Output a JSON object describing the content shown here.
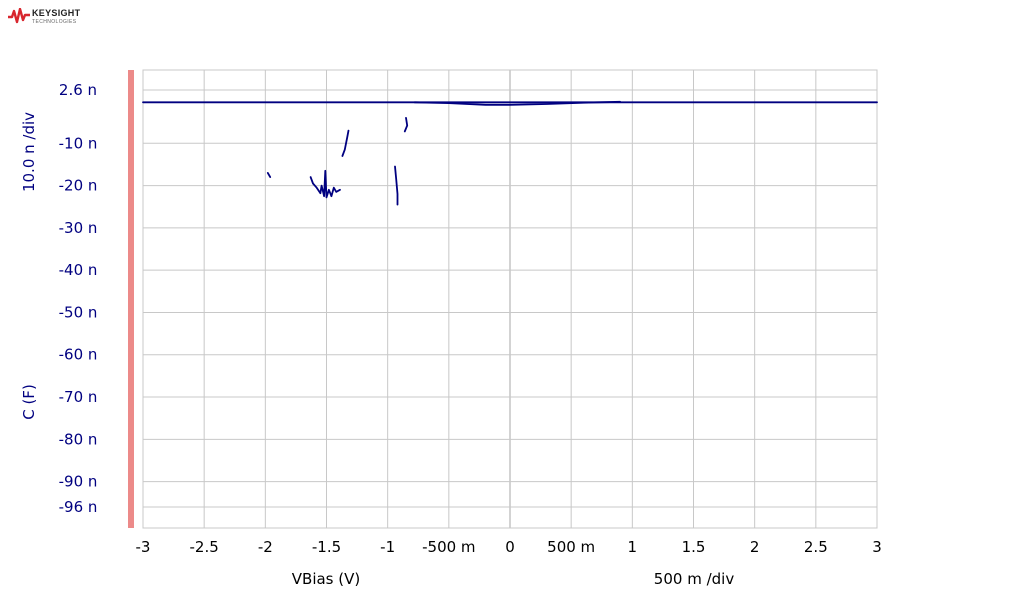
{
  "brand": {
    "name": "KEYSIGHT",
    "subtitle": "TECHNOLOGIES",
    "logo_color": "#d8262e"
  },
  "chart_data": {
    "type": "line",
    "xlabel": "VBias (V)",
    "x_scale_label": "500 m /div",
    "ylabel": "C (F)",
    "y_scale_label": "10.0 n /div",
    "xlim": [
      -3,
      3
    ],
    "ylim": [
      -96,
      2.6
    ],
    "grid": true,
    "x_ticks": [
      {
        "value": -3,
        "label": "-3"
      },
      {
        "value": -2.5,
        "label": "-2.5"
      },
      {
        "value": -2,
        "label": "-2"
      },
      {
        "value": -1.5,
        "label": "-1.5"
      },
      {
        "value": -1,
        "label": "-1"
      },
      {
        "value": -0.5,
        "label": "-500 m"
      },
      {
        "value": 0,
        "label": "0"
      },
      {
        "value": 0.5,
        "label": "500 m"
      },
      {
        "value": 1,
        "label": "1"
      },
      {
        "value": 1.5,
        "label": "1.5"
      },
      {
        "value": 2,
        "label": "2"
      },
      {
        "value": 2.5,
        "label": "2.5"
      },
      {
        "value": 3,
        "label": "3"
      }
    ],
    "y_ticks": [
      {
        "value": 2.6,
        "label": "2.6 n"
      },
      {
        "value": -10,
        "label": "-10 n"
      },
      {
        "value": -20,
        "label": "-20 n"
      },
      {
        "value": -30,
        "label": "-30 n"
      },
      {
        "value": -40,
        "label": "-40 n"
      },
      {
        "value": -50,
        "label": "-50 n"
      },
      {
        "value": -60,
        "label": "-60 n"
      },
      {
        "value": -70,
        "label": "-70 n"
      },
      {
        "value": -80,
        "label": "-80 n"
      },
      {
        "value": -90,
        "label": "-90 n"
      },
      {
        "value": -96,
        "label": "-96 n"
      }
    ],
    "series_color": "#000080",
    "series": [
      {
        "segments": [
          [
            [
              -3.0,
              -0.3
            ],
            [
              3.0,
              -0.3
            ]
          ],
          [
            [
              -0.78,
              -0.3
            ],
            [
              -0.5,
              -0.5
            ],
            [
              -0.2,
              -0.9
            ],
            [
              0.0,
              -0.9
            ],
            [
              0.3,
              -0.7
            ],
            [
              0.6,
              -0.4
            ],
            [
              0.9,
              -0.2
            ]
          ],
          [
            [
              -0.85,
              -4.0
            ],
            [
              -0.84,
              -5.8
            ],
            [
              -0.86,
              -7.2
            ]
          ],
          [
            [
              -1.98,
              -17.0
            ],
            [
              -1.96,
              -18.0
            ]
          ],
          [
            [
              -1.32,
              -7.0
            ],
            [
              -1.33,
              -8.5
            ],
            [
              -1.35,
              -11.5
            ],
            [
              -1.37,
              -13.0
            ]
          ],
          [
            [
              -1.63,
              -18.0
            ],
            [
              -1.61,
              -19.5
            ],
            [
              -1.58,
              -20.5
            ],
            [
              -1.55,
              -21.8
            ],
            [
              -1.54,
              -20.0
            ],
            [
              -1.52,
              -22.5
            ],
            [
              -1.51,
              -16.5
            ],
            [
              -1.5,
              -22.8
            ],
            [
              -1.48,
              -21.0
            ],
            [
              -1.46,
              -22.5
            ],
            [
              -1.44,
              -20.5
            ],
            [
              -1.42,
              -21.5
            ],
            [
              -1.39,
              -21.0
            ]
          ],
          [
            [
              -0.94,
              -15.5
            ],
            [
              -0.93,
              -18.5
            ],
            [
              -0.92,
              -22.0
            ],
            [
              -0.92,
              -24.5
            ]
          ]
        ]
      }
    ]
  }
}
